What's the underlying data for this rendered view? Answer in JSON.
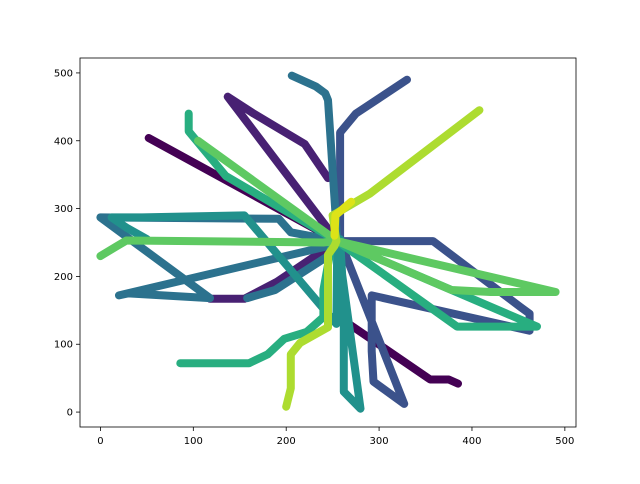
{
  "chart_data": {
    "type": "line",
    "title": "",
    "xlabel": "",
    "ylabel": "",
    "xlim": [
      -22,
      512
    ],
    "ylim": [
      -22,
      522
    ],
    "x_ticks": [
      {
        "value": 0,
        "label": "0"
      },
      {
        "value": 100,
        "label": "100"
      },
      {
        "value": 200,
        "label": "200"
      },
      {
        "value": 300,
        "label": "300"
      },
      {
        "value": 400,
        "label": "400"
      },
      {
        "value": 500,
        "label": "500"
      }
    ],
    "y_ticks": [
      {
        "value": 0,
        "label": "0"
      },
      {
        "value": 100,
        "label": "100"
      },
      {
        "value": 200,
        "label": "200"
      },
      {
        "value": 300,
        "label": "300"
      },
      {
        "value": 400,
        "label": "400"
      },
      {
        "value": 500,
        "label": "500"
      }
    ],
    "grid": false,
    "legend": "none",
    "colormap": "viridis",
    "series": [
      {
        "color": "#440154",
        "points": [
          [
            52,
            404
          ],
          [
            255,
            252
          ],
          [
            262,
            135
          ],
          [
            355,
            48
          ],
          [
            375,
            48
          ],
          [
            385,
            42
          ]
        ]
      },
      {
        "color": "#482173",
        "points": [
          [
            118,
            167
          ],
          [
            155,
            167
          ],
          [
            190,
            192
          ],
          [
            255,
            252
          ],
          [
            137,
            465
          ],
          [
            165,
            440
          ],
          [
            220,
            395
          ],
          [
            245,
            345
          ]
        ]
      },
      {
        "color": "#3b528b",
        "points": [
          [
            258,
            252
          ],
          [
            358,
            252
          ],
          [
            452,
            155
          ],
          [
            462,
            145
          ],
          [
            462,
            120
          ],
          [
            292,
            172
          ],
          [
            292,
            90
          ],
          [
            294,
            45
          ],
          [
            327,
            12
          ],
          [
            258,
            252
          ],
          [
            258,
            412
          ],
          [
            275,
            440
          ],
          [
            330,
            490
          ]
        ]
      },
      {
        "color": "#2c728e",
        "points": [
          [
            158,
            168
          ],
          [
            188,
            180
          ],
          [
            245,
            230
          ],
          [
            255,
            248
          ],
          [
            20,
            172
          ],
          [
            30,
            175
          ],
          [
            118,
            168
          ],
          [
            0,
            287
          ],
          [
            192,
            285
          ],
          [
            205,
            265
          ],
          [
            255,
            252
          ],
          [
            245,
            460
          ],
          [
            242,
            470
          ],
          [
            232,
            480
          ],
          [
            206,
            496
          ]
        ]
      },
      {
        "color": "#21918c",
        "points": [
          [
            258,
            255
          ],
          [
            262,
            160
          ],
          [
            262,
            30
          ],
          [
            280,
            5
          ],
          [
            255,
            255
          ],
          [
            254,
            130
          ],
          [
            155,
            290
          ],
          [
            45,
            287
          ],
          [
            12,
            287
          ],
          [
            28,
            272
          ],
          [
            50,
            255
          ]
        ]
      },
      {
        "color": "#28ae80",
        "points": [
          [
            86,
            72
          ],
          [
            108,
            72
          ],
          [
            160,
            72
          ],
          [
            180,
            85
          ],
          [
            198,
            108
          ],
          [
            222,
            118
          ],
          [
            240,
            140
          ],
          [
            240,
            180
          ],
          [
            248,
            240
          ],
          [
            255,
            252
          ],
          [
            384,
            126
          ],
          [
            470,
            126
          ],
          [
            255,
            252
          ],
          [
            135,
            348
          ],
          [
            95,
            414
          ],
          [
            95,
            440
          ]
        ]
      },
      {
        "color": "#5ec962",
        "points": [
          [
            0,
            230
          ],
          [
            18,
            245
          ],
          [
            28,
            253
          ],
          [
            240,
            250
          ],
          [
            255,
            252
          ],
          [
            378,
            180
          ],
          [
            420,
            177
          ],
          [
            490,
            177
          ],
          [
            255,
            252
          ],
          [
            105,
            400
          ]
        ]
      },
      {
        "color": "#addc30",
        "points": [
          [
            200,
            8
          ],
          [
            205,
            35
          ],
          [
            205,
            85
          ],
          [
            215,
            102
          ],
          [
            245,
            125
          ],
          [
            245,
            232
          ],
          [
            252,
            245
          ],
          [
            254,
            252
          ],
          [
            250,
            290
          ],
          [
            290,
            322
          ],
          [
            408,
            445
          ]
        ]
      },
      {
        "color": "#dde318",
        "points": [
          [
            252,
            260
          ],
          [
            253,
            290
          ],
          [
            270,
            310
          ]
        ]
      }
    ]
  }
}
